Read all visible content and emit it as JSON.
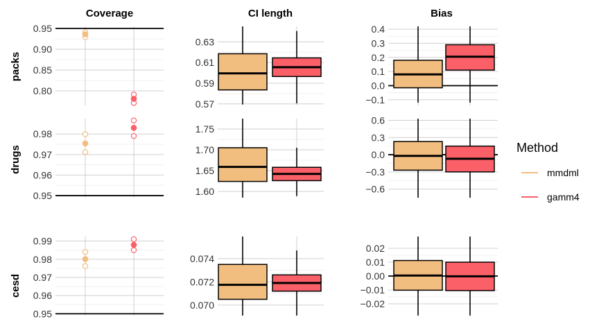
{
  "columns": [
    "Coverage",
    "CI length",
    "Bias"
  ],
  "rows": [
    "packs",
    "drugs",
    "cesd"
  ],
  "legend": {
    "title": "Method",
    "items": [
      {
        "label": "mmdml",
        "color": "#F2BE7F"
      },
      {
        "label": "gamm4",
        "color": "#FB6069"
      }
    ]
  },
  "chart_data": [
    {
      "type": "scatter",
      "row": "packs",
      "column": "Coverage",
      "yticks": [
        0.8,
        0.85,
        0.9,
        0.95
      ],
      "tick_labels": [
        "0.80",
        "0.85",
        "0.90",
        "0.95"
      ],
      "ylim": [
        0.765,
        0.955
      ],
      "hline": 0.95,
      "series": [
        {
          "name": "mmdml",
          "mean": 0.936,
          "lower": 0.929,
          "upper": 0.941
        },
        {
          "name": "gamm4",
          "mean": 0.781,
          "lower": 0.771,
          "upper": 0.791
        }
      ]
    },
    {
      "type": "box",
      "row": "packs",
      "column": "CI length",
      "yticks": [
        0.57,
        0.59,
        0.61,
        0.63
      ],
      "tick_labels": [
        "0.57",
        "0.59",
        "0.61",
        "0.63"
      ],
      "ylim": [
        0.5685,
        0.645
      ],
      "series": [
        {
          "name": "mmdml",
          "low": 0.5695,
          "q1": 0.5835,
          "median": 0.5995,
          "q3": 0.6185,
          "high": 0.645
        },
        {
          "name": "gamm4",
          "low": 0.5705,
          "q1": 0.5965,
          "median": 0.6055,
          "q3": 0.6145,
          "high": 0.6405
        }
      ]
    },
    {
      "type": "box",
      "row": "packs",
      "column": "Bias",
      "yticks": [
        -0.1,
        0.0,
        0.1,
        0.2,
        0.3,
        0.4
      ],
      "tick_labels": [
        "−0.1",
        "0.0",
        "0.1",
        "0.2",
        "0.3",
        "0.4"
      ],
      "ylim": [
        -0.14,
        0.42
      ],
      "hline": 0.0,
      "series": [
        {
          "name": "mmdml",
          "low": -0.12,
          "q1": -0.015,
          "median": 0.08,
          "q3": 0.18,
          "high": 0.42
        },
        {
          "name": "gamm4",
          "low": -0.12,
          "q1": 0.11,
          "median": 0.205,
          "q3": 0.29,
          "high": 0.42
        }
      ]
    },
    {
      "type": "scatter",
      "row": "drugs",
      "column": "Coverage",
      "yticks": [
        0.95,
        0.96,
        0.97,
        0.98
      ],
      "tick_labels": [
        "0.95",
        "0.96",
        "0.97",
        "0.98"
      ],
      "ylim": [
        0.949,
        0.9875
      ],
      "hline": 0.95,
      "series": [
        {
          "name": "mmdml",
          "mean": 0.9754,
          "lower": 0.9712,
          "upper": 0.9799
        },
        {
          "name": "gamm4",
          "mean": 0.983,
          "lower": 0.979,
          "upper": 0.9866
        }
      ]
    },
    {
      "type": "box",
      "row": "drugs",
      "column": "CI length",
      "yticks": [
        1.6,
        1.65,
        1.7,
        1.75
      ],
      "tick_labels": [
        "1.60",
        "1.65",
        "1.70",
        "1.75"
      ],
      "ylim": [
        1.585,
        1.775
      ],
      "series": [
        {
          "name": "mmdml",
          "low": 1.585,
          "q1": 1.624,
          "median": 1.659,
          "q3": 1.705,
          "high": 1.775
        },
        {
          "name": "gamm4",
          "low": 1.589,
          "q1": 1.626,
          "median": 1.642,
          "q3": 1.658,
          "high": 1.705
        }
      ]
    },
    {
      "type": "box",
      "row": "drugs",
      "column": "Bias",
      "yticks": [
        -0.6,
        -0.3,
        0.0,
        0.3,
        0.6
      ],
      "tick_labels": [
        "−0.6",
        "−0.3",
        "0.0",
        "0.3",
        "0.6"
      ],
      "ylim": [
        -0.75,
        0.63
      ],
      "hline": 0.0,
      "series": [
        {
          "name": "mmdml",
          "low": -0.75,
          "q1": -0.27,
          "median": -0.02,
          "q3": 0.23,
          "high": 0.63
        },
        {
          "name": "gamm4",
          "low": -0.75,
          "q1": -0.3,
          "median": -0.07,
          "q3": 0.15,
          "high": 0.63
        }
      ]
    },
    {
      "type": "scatter",
      "row": "cesd",
      "column": "Coverage",
      "yticks": [
        0.95,
        0.96,
        0.97,
        0.98,
        0.99
      ],
      "tick_labels": [
        "0.95",
        "0.96",
        "0.97",
        "0.98",
        "0.99"
      ],
      "ylim": [
        0.949,
        0.9925
      ],
      "hline": 0.95,
      "series": [
        {
          "name": "mmdml",
          "mean": 0.9801,
          "lower": 0.9762,
          "upper": 0.984
        },
        {
          "name": "gamm4",
          "mean": 0.9879,
          "lower": 0.985,
          "upper": 0.991
        }
      ]
    },
    {
      "type": "box",
      "row": "cesd",
      "column": "CI length",
      "yticks": [
        0.07,
        0.072,
        0.074
      ],
      "tick_labels": [
        "0.070",
        "0.072",
        "0.074"
      ],
      "ylim": [
        0.0691,
        0.0759
      ],
      "series": [
        {
          "name": "mmdml",
          "low": 0.0691,
          "q1": 0.0705,
          "median": 0.07175,
          "q3": 0.0735,
          "high": 0.0759
        },
        {
          "name": "gamm4",
          "low": 0.0691,
          "q1": 0.0712,
          "median": 0.0719,
          "q3": 0.0726,
          "high": 0.0747
        }
      ]
    },
    {
      "type": "box",
      "row": "cesd",
      "column": "Bias",
      "yticks": [
        -0.02,
        -0.01,
        0.0,
        0.01,
        0.02
      ],
      "tick_labels": [
        "−0.02",
        "−0.01",
        "0.00",
        "0.01",
        "0.02"
      ],
      "ylim": [
        -0.0285,
        0.0285
      ],
      "hline": 0.0,
      "series": [
        {
          "name": "mmdml",
          "low": -0.0285,
          "q1": -0.0102,
          "median": 0.0004,
          "q3": 0.0112,
          "high": 0.0285
        },
        {
          "name": "gamm4",
          "low": -0.0285,
          "q1": -0.0105,
          "median": -0.0002,
          "q3": 0.01,
          "high": 0.0285
        }
      ]
    }
  ]
}
